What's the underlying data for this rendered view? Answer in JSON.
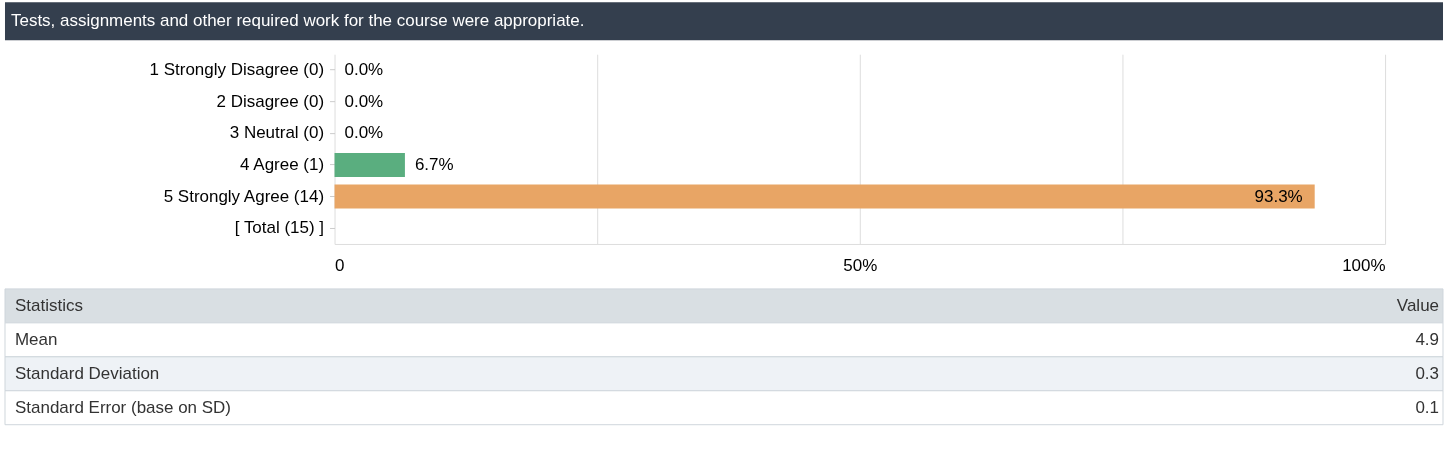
{
  "chart_data": {
    "type": "bar",
    "orientation": "horizontal",
    "title": "Tests, assignments and other required work for the course were appropriate.",
    "categories": [
      "1 Strongly Disagree (0)",
      "2 Disagree (0)",
      "3 Neutral (0)",
      "4 Agree (1)",
      "5 Strongly Agree (14)",
      "[ Total (15) ]"
    ],
    "values": [
      0,
      0,
      0,
      6.7,
      93.3,
      null
    ],
    "colors": [
      "#5aae7f",
      "#5aae7f",
      "#5aae7f",
      "#5aae7f",
      "#e8a565",
      "#5aae7f"
    ],
    "value_labels": [
      "0.0%",
      "0.0%",
      "0.0%",
      "6.7%",
      "93.3%",
      null
    ],
    "xlim": [
      0,
      100
    ],
    "xticks": [
      {
        "value": 0,
        "label": "0"
      },
      {
        "value": 25,
        "label": null
      },
      {
        "value": 50,
        "label": "50%"
      },
      {
        "value": 75,
        "label": null
      },
      {
        "value": 100,
        "label": "100%"
      }
    ],
    "grid": "x",
    "annotations": [
      "Statistics",
      "Value",
      "Mean",
      "4.9",
      "Standard Deviation",
      "0.3",
      "Standard Error (base on SD)",
      "0.1"
    ]
  }
}
